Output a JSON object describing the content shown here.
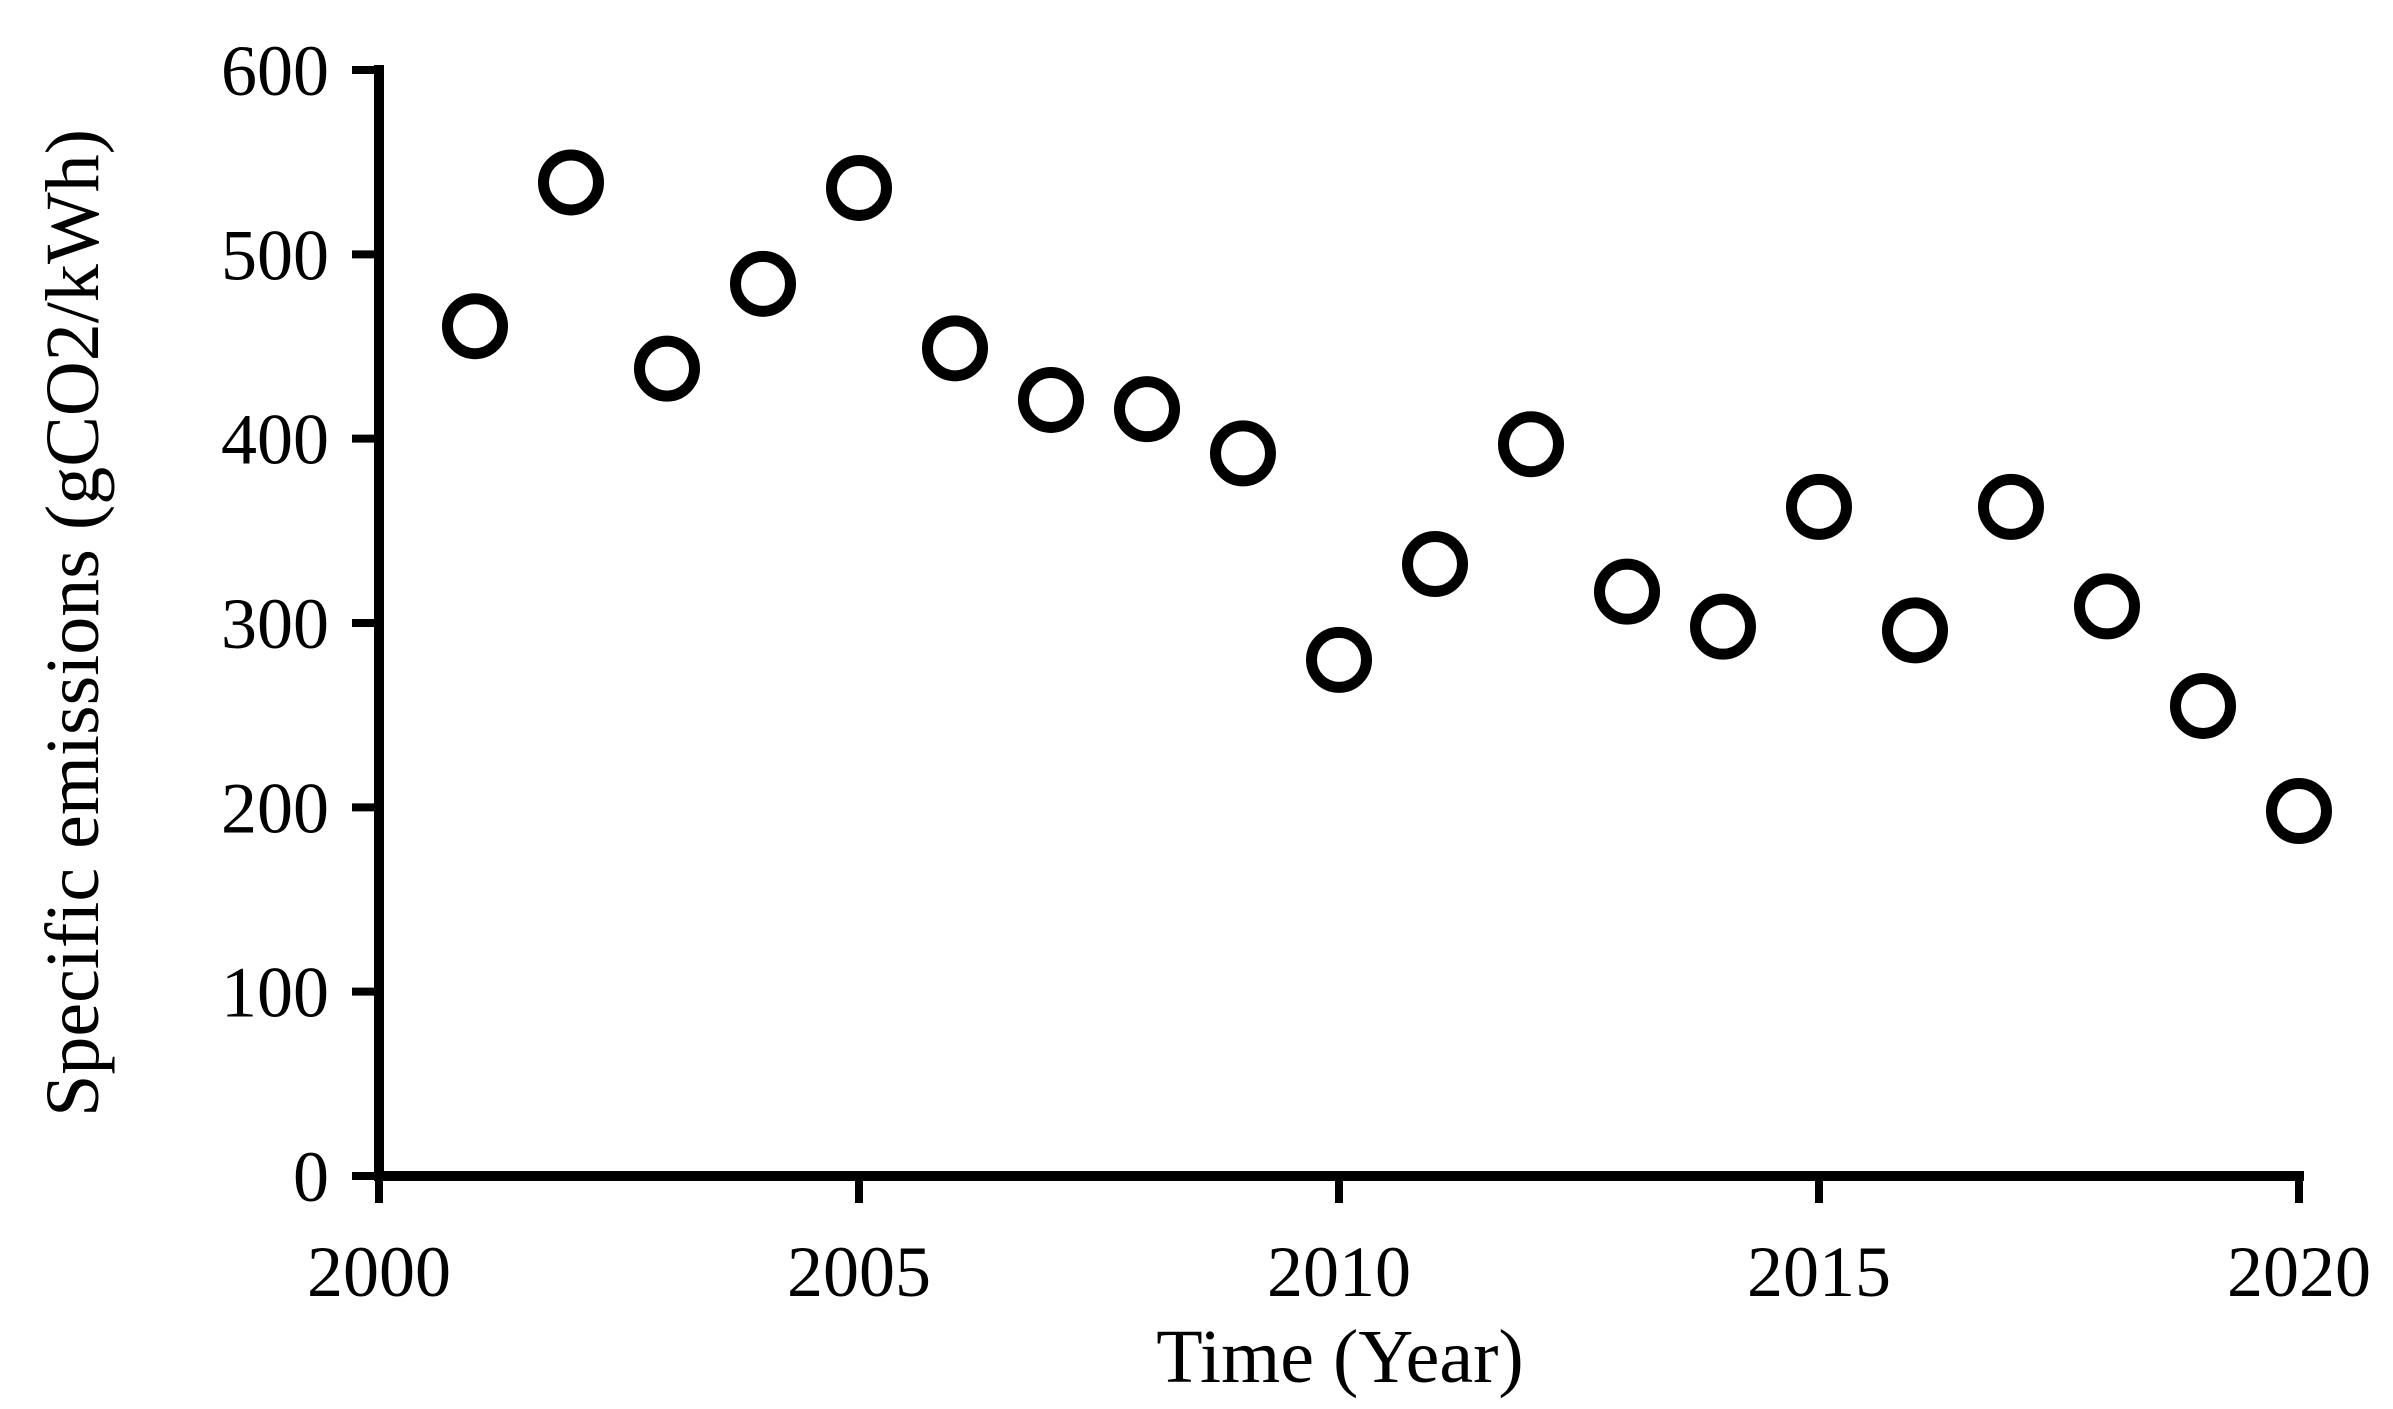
{
  "chart_data": {
    "type": "scatter",
    "title": "",
    "xlabel": "Time (Year)",
    "ylabel": "Specific emissions (gCO2/kWh)",
    "xlim": [
      2000,
      2020
    ],
    "ylim": [
      0,
      600
    ],
    "x_ticks": [
      2000,
      2005,
      2010,
      2015,
      2020
    ],
    "y_ticks": [
      0,
      100,
      200,
      300,
      400,
      500,
      600
    ],
    "grid": false,
    "legend_position": "none",
    "marker": {
      "shape": "open-circle",
      "stroke_color": "#000000",
      "fill_color": "#ffffff"
    },
    "axis_color": "#000000",
    "series": [
      {
        "name": "Specific emissions",
        "x": [
          2001,
          2002,
          2003,
          2004,
          2005,
          2006,
          2007,
          2008,
          2009,
          2010,
          2011,
          2012,
          2013,
          2014,
          2015,
          2016,
          2017,
          2018,
          2019,
          2020
        ],
        "y": [
          461,
          539,
          438,
          484,
          536,
          449,
          421,
          416,
          392,
          280,
          332,
          397,
          317,
          298,
          363,
          296,
          363,
          309,
          255,
          198
        ]
      }
    ]
  }
}
